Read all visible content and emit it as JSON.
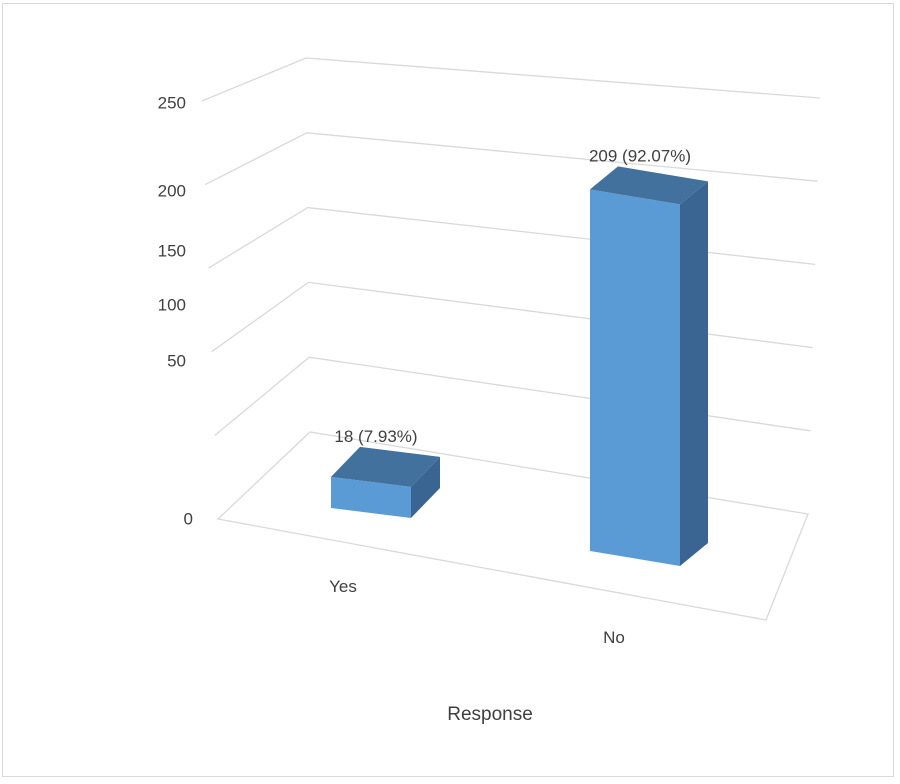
{
  "chart_data": {
    "type": "bar",
    "style": "3d-column",
    "categories": [
      "Yes",
      "No"
    ],
    "values": [
      18,
      209
    ],
    "data_labels": [
      "18 (7.93%)",
      "209 (92.07%)"
    ],
    "xlabel": "Response",
    "ylabel": "",
    "ylim": [
      0,
      250
    ],
    "yticks": [
      "0",
      "50",
      "100",
      "150",
      "200",
      "250"
    ],
    "grid": true,
    "legend": "none",
    "colors": {
      "front": "#5b9bd5",
      "top": "#41719c",
      "side": "#3a6592",
      "grid": "#d9d9d9",
      "text": "#404040"
    }
  }
}
